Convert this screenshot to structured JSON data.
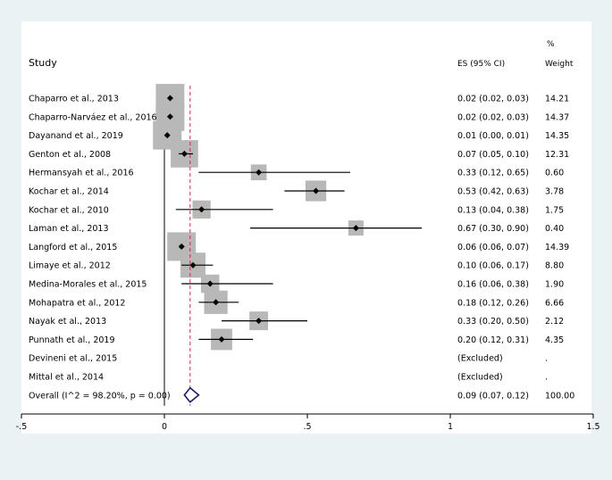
{
  "chart_data": {
    "type": "forest",
    "headers": {
      "study": "Study",
      "es": "ES (95% CI)",
      "weight_top": "%",
      "weight_bottom": "Weight"
    },
    "studies": [
      {
        "label": "Chaparro et al., 2013",
        "es": 0.02,
        "lo": 0.02,
        "hi": 0.03,
        "es_text": "0.02 (0.02, 0.03)",
        "weight": 14.21,
        "weight_text": "14.21"
      },
      {
        "label": "Chaparro-Narváez et al., 2016",
        "es": 0.02,
        "lo": 0.02,
        "hi": 0.03,
        "es_text": "0.02 (0.02, 0.03)",
        "weight": 14.37,
        "weight_text": "14.37"
      },
      {
        "label": "Dayanand et al., 2019",
        "es": 0.01,
        "lo": 0.0,
        "hi": 0.01,
        "es_text": "0.01 (0.00, 0.01)",
        "weight": 14.35,
        "weight_text": "14.35"
      },
      {
        "label": "Genton et al., 2008",
        "es": 0.07,
        "lo": 0.05,
        "hi": 0.1,
        "es_text": "0.07 (0.05, 0.10)",
        "weight": 12.31,
        "weight_text": "12.31"
      },
      {
        "label": "Hermansyah et al., 2016",
        "es": 0.33,
        "lo": 0.12,
        "hi": 0.65,
        "es_text": "0.33 (0.12, 0.65)",
        "weight": 0.6,
        "weight_text": "0.60"
      },
      {
        "label": "Kochar et al., 2014",
        "es": 0.53,
        "lo": 0.42,
        "hi": 0.63,
        "es_text": "0.53 (0.42, 0.63)",
        "weight": 3.78,
        "weight_text": "3.78"
      },
      {
        "label": "Kochar et al., 2010",
        "es": 0.13,
        "lo": 0.04,
        "hi": 0.38,
        "es_text": "0.13 (0.04, 0.38)",
        "weight": 1.75,
        "weight_text": "1.75"
      },
      {
        "label": "Laman et al., 2013",
        "es": 0.67,
        "lo": 0.3,
        "hi": 0.9,
        "es_text": "0.67 (0.30, 0.90)",
        "weight": 0.4,
        "weight_text": "0.40"
      },
      {
        "label": "Langford et al., 2015",
        "es": 0.06,
        "lo": 0.06,
        "hi": 0.07,
        "es_text": "0.06 (0.06, 0.07)",
        "weight": 14.39,
        "weight_text": "14.39"
      },
      {
        "label": "Limaye et al., 2012",
        "es": 0.1,
        "lo": 0.06,
        "hi": 0.17,
        "es_text": "0.10 (0.06, 0.17)",
        "weight": 8.8,
        "weight_text": "8.80"
      },
      {
        "label": "Medina-Morales et al., 2015",
        "es": 0.16,
        "lo": 0.06,
        "hi": 0.38,
        "es_text": "0.16 (0.06, 0.38)",
        "weight": 1.9,
        "weight_text": "1.90"
      },
      {
        "label": "Mohapatra et al., 2012",
        "es": 0.18,
        "lo": 0.12,
        "hi": 0.26,
        "es_text": "0.18 (0.12, 0.26)",
        "weight": 6.66,
        "weight_text": "6.66"
      },
      {
        "label": "Nayak et al., 2013",
        "es": 0.33,
        "lo": 0.2,
        "hi": 0.5,
        "es_text": "0.33 (0.20, 0.50)",
        "weight": 2.12,
        "weight_text": "2.12"
      },
      {
        "label": "Punnath et al., 2019",
        "es": 0.2,
        "lo": 0.12,
        "hi": 0.31,
        "es_text": "0.20 (0.12, 0.31)",
        "weight": 4.35,
        "weight_text": "4.35"
      },
      {
        "label": "Devineni et al., 2015",
        "es": null,
        "lo": null,
        "hi": null,
        "es_text": "(Excluded)",
        "weight": null,
        "weight_text": "."
      },
      {
        "label": "Mittal et al., 2014",
        "es": null,
        "lo": null,
        "hi": null,
        "es_text": "(Excluded)",
        "weight": null,
        "weight_text": "."
      }
    ],
    "overall": {
      "label": "Overall  (I^2 = 98.20%, p = 0.00)",
      "es": 0.09,
      "lo": 0.07,
      "hi": 0.12,
      "es_text": "0.09 (0.07, 0.12)",
      "weight_text": "100.00"
    },
    "xaxis": {
      "min": -0.5,
      "max": 1.5,
      "ticks": [
        -0.5,
        0,
        0.5,
        1,
        1.5
      ],
      "tick_labels": [
        "-.5",
        "0",
        ".5",
        "1",
        "1.5"
      ]
    },
    "colors": {
      "background": "#eaf2f3",
      "panel": "#ffffff",
      "box": "#b8b8b8",
      "ci_line": "#000000",
      "null_line": "#000000",
      "overall_line": "#c0334d",
      "diamond": "#1a1a6e"
    }
  }
}
